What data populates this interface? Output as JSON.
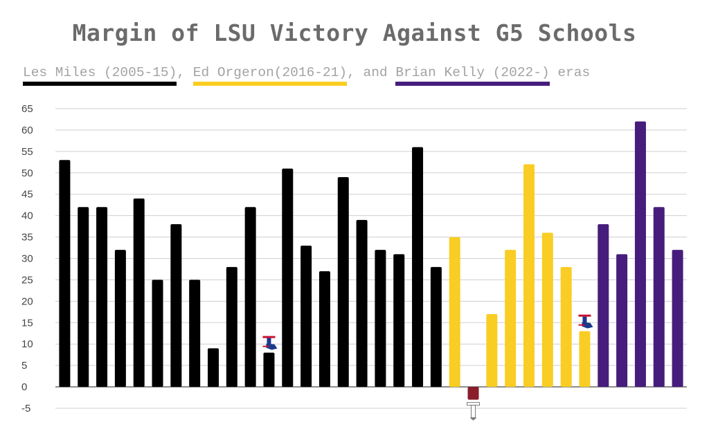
{
  "title": "Margin of LSU Victory Against G5 Schools",
  "subtitle": {
    "eras": [
      {
        "label": "Les Miles (2005-15)",
        "color": "#000000"
      },
      {
        "label": "Ed Orgeron(2016-21)",
        "color": "#f9cd24"
      },
      {
        "label": "Brian Kelly (2022-)",
        "color": "#461d7c"
      }
    ],
    "sep1": ", ",
    "sep2": ", and ",
    "suffix": " eras"
  },
  "chart_data": {
    "type": "bar",
    "ylim": [
      -5,
      65
    ],
    "y_ticks": [
      65,
      60,
      55,
      50,
      45,
      40,
      35,
      30,
      25,
      20,
      15,
      10,
      5,
      0,
      -5
    ],
    "grid": true,
    "loss_color": "#8b1c2b",
    "values": [
      53,
      42,
      42,
      32,
      44,
      25,
      38,
      25,
      9,
      28,
      42,
      8,
      51,
      33,
      27,
      49,
      39,
      32,
      31,
      56,
      28,
      35,
      -3,
      17,
      32,
      52,
      36,
      28,
      13,
      38,
      31,
      62,
      42,
      32
    ],
    "eras": [
      "miles",
      "miles",
      "miles",
      "miles",
      "miles",
      "miles",
      "miles",
      "miles",
      "miles",
      "miles",
      "miles",
      "miles",
      "miles",
      "miles",
      "miles",
      "miles",
      "miles",
      "miles",
      "miles",
      "miles",
      "miles",
      "orgeron",
      "orgeron",
      "orgeron",
      "orgeron",
      "orgeron",
      "orgeron",
      "orgeron",
      "orgeron",
      "kelly",
      "kelly",
      "kelly",
      "kelly",
      "kelly"
    ],
    "era_colors": {
      "miles": "#000000",
      "orgeron": "#f9cd24",
      "kelly": "#461d7c"
    },
    "logos": [
      {
        "bar": 11,
        "icon": "louisiana-tech-logo-icon"
      },
      {
        "bar": 22,
        "icon": "troy-logo-icon"
      },
      {
        "bar": 28,
        "icon": "louisiana-tech-logo-icon"
      }
    ]
  }
}
